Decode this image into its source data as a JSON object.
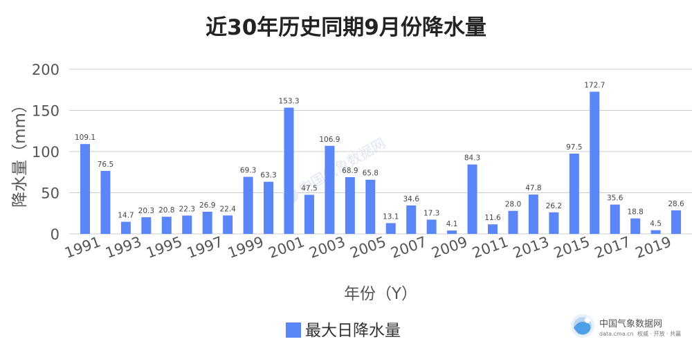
{
  "chart_data": {
    "type": "bar",
    "title": "近30年历史同期9月份降水量",
    "xlabel": "年份（Y）",
    "ylabel": "降水量（mm）",
    "ylim": [
      0,
      200
    ],
    "yticks": [
      "0",
      "50",
      "100",
      "150",
      "200"
    ],
    "grid": true,
    "legend_position": "bottom",
    "categories": [
      "1991",
      "1992",
      "1993",
      "1994",
      "1995",
      "1996",
      "1997",
      "1998",
      "1999",
      "2000",
      "2001",
      "2002",
      "2003",
      "2004",
      "2005",
      "2006",
      "2007",
      "2008",
      "2009",
      "2010",
      "2011",
      "2012",
      "2013",
      "2014",
      "2015",
      "2016",
      "2017",
      "2018",
      "2019",
      "2020"
    ],
    "xtick_labels": [
      "1991",
      "1993",
      "1995",
      "1997",
      "1999",
      "2001",
      "2003",
      "2005",
      "2007",
      "2009",
      "2011",
      "2013",
      "2015",
      "2017",
      "2019"
    ],
    "series": [
      {
        "name": "最大日降水量",
        "color": "#5b86f7",
        "values": [
          109.1,
          76.5,
          14.7,
          20.3,
          20.8,
          22.3,
          26.9,
          22.4,
          69.3,
          63.3,
          153.3,
          47.5,
          106.9,
          68.9,
          65.8,
          13.1,
          34.6,
          17.3,
          4.1,
          84.3,
          11.6,
          28.0,
          47.8,
          26.2,
          97.5,
          172.7,
          35.6,
          18.8,
          4.5,
          28.6
        ],
        "value_labels": [
          "109.1",
          "76.5",
          "14.7",
          "20.3",
          "20.8",
          "22.3",
          "26.9",
          "22.4",
          "69.3",
          "63.3",
          "153.3",
          "47.5",
          "106.9",
          "68.9",
          "65.8",
          "13.1",
          "34.6",
          "17.3",
          "4.1",
          "84.3",
          "11.6",
          "28.0",
          "47.8",
          "26.2",
          "97.5",
          "172.7",
          "35.6",
          "18.8",
          "4.5",
          "28.6"
        ]
      }
    ]
  },
  "watermark": {
    "text": "中国气象数据网"
  },
  "logo": {
    "name": "中国气象数据网",
    "url": "data.cma.cn",
    "slogan": "权威 · 开放 · 共赢"
  }
}
